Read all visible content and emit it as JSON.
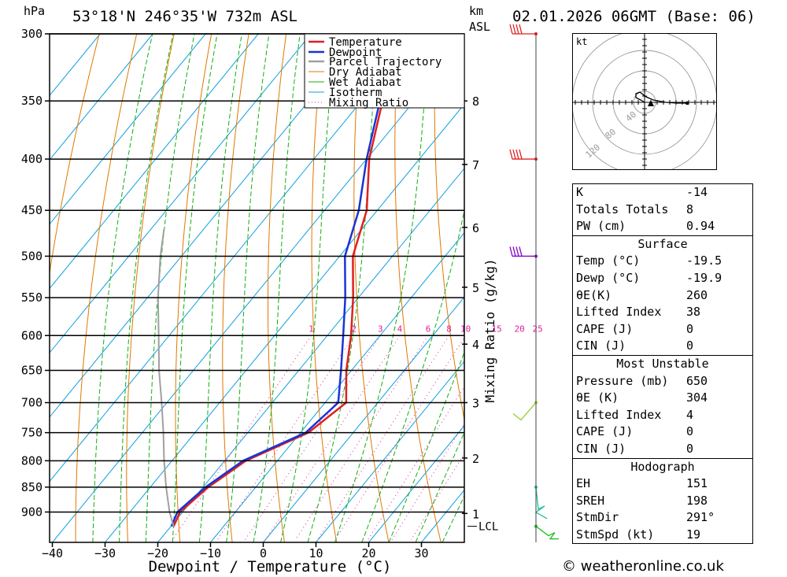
{
  "header": {
    "location": "53°18'N 246°35'W 732m ASL",
    "date": "02.01.2026 06GMT (Base: 06)",
    "hpa_label": "hPa",
    "km_label": "km",
    "asl_label": "ASL"
  },
  "chart_data": {
    "type": "line",
    "title": "Skew-T log-P diagram",
    "xlabel": "Dewpoint / Temperature (°C)",
    "ylabel": "hPa",
    "right_axis_label": "Mixing Ratio (g/kg)",
    "x_ticks": [
      -40,
      -30,
      -20,
      -10,
      0,
      10,
      20,
      30
    ],
    "pressure_levels": [
      300,
      350,
      400,
      450,
      500,
      550,
      600,
      650,
      700,
      750,
      800,
      850,
      900
    ],
    "km_ticks": [
      {
        "label": "8",
        "p": 350
      },
      {
        "label": "7",
        "p": 405
      },
      {
        "label": "6",
        "p": 468
      },
      {
        "label": "5",
        "p": 537
      },
      {
        "label": "4",
        "p": 612
      },
      {
        "label": "3",
        "p": 700
      },
      {
        "label": "2",
        "p": 795
      },
      {
        "label": "1",
        "p": 903
      }
    ],
    "lcl_label": "LCL",
    "lcl_p": 930,
    "mixing_ratio_labels": [
      "1",
      "2",
      "3",
      "4",
      "6",
      "8",
      "10",
      "15",
      "20",
      "25"
    ],
    "legend": [
      "Temperature",
      "Dewpoint",
      "Parcel Trajectory",
      "Dry Adiabat",
      "Wet Adiabat",
      "Isotherm",
      "Mixing Ratio"
    ],
    "series": [
      {
        "name": "Temperature",
        "points": [
          [
            300,
            -52
          ],
          [
            350,
            -46
          ],
          [
            400,
            -39.5
          ],
          [
            450,
            -32
          ],
          [
            500,
            -27.5
          ],
          [
            550,
            -21
          ],
          [
            600,
            -15.5
          ],
          [
            650,
            -11
          ],
          [
            700,
            -6
          ],
          [
            750,
            -8.5
          ],
          [
            800,
            -16
          ],
          [
            850,
            -19
          ],
          [
            900,
            -20.5
          ],
          [
            930,
            -19.5
          ]
        ]
      },
      {
        "name": "Dewpoint",
        "points": [
          [
            300,
            -53
          ],
          [
            350,
            -46.5
          ],
          [
            400,
            -40
          ],
          [
            450,
            -33.5
          ],
          [
            500,
            -29
          ],
          [
            550,
            -22.5
          ],
          [
            600,
            -17
          ],
          [
            650,
            -12
          ],
          [
            700,
            -7.5
          ],
          [
            750,
            -9
          ],
          [
            800,
            -16.5
          ],
          [
            850,
            -19.5
          ],
          [
            900,
            -21
          ],
          [
            930,
            -19.9
          ]
        ]
      },
      {
        "name": "Parcel Trajectory",
        "points": [
          [
            930,
            -19.5
          ],
          [
            900,
            -22.5
          ],
          [
            850,
            -27
          ],
          [
            800,
            -31.5
          ],
          [
            750,
            -36
          ],
          [
            700,
            -41
          ],
          [
            650,
            -46.5
          ],
          [
            600,
            -52
          ],
          [
            550,
            -58
          ],
          [
            500,
            -64
          ],
          [
            470,
            -67.5
          ]
        ]
      }
    ],
    "wind_barbs": [
      {
        "p": 300,
        "color": "#e02020"
      },
      {
        "p": 400,
        "color": "#e02020"
      },
      {
        "p": 500,
        "color": "#8a00c8"
      },
      {
        "p": 700,
        "color": "#9acd32"
      },
      {
        "p": 850,
        "color": "#20c0a0"
      },
      {
        "p": 930,
        "color": "#20c020"
      }
    ]
  },
  "hodograph": {
    "unit": "kt",
    "ring_labels": [
      "40",
      "80",
      "120"
    ]
  },
  "indices": {
    "top": [
      {
        "label": "K",
        "value": "-14"
      },
      {
        "label": "Totals Totals",
        "value": "8"
      },
      {
        "label": "PW (cm)",
        "value": "0.94"
      }
    ],
    "surface_title": "Surface",
    "surface": [
      {
        "label": "Temp (°C)",
        "value": "-19.5"
      },
      {
        "label": "Dewp (°C)",
        "value": "-19.9"
      },
      {
        "label": "θE(K)",
        "value": "260"
      },
      {
        "label": "Lifted Index",
        "value": "38"
      },
      {
        "label": "CAPE (J)",
        "value": "0"
      },
      {
        "label": "CIN (J)",
        "value": "0"
      }
    ],
    "mu_title": "Most Unstable",
    "mu": [
      {
        "label": "Pressure (mb)",
        "value": "650"
      },
      {
        "label": "θE (K)",
        "value": "304"
      },
      {
        "label": "Lifted Index",
        "value": "4"
      },
      {
        "label": "CAPE (J)",
        "value": "0"
      },
      {
        "label": "CIN (J)",
        "value": "0"
      }
    ],
    "hodo_title": "Hodograph",
    "hodo": [
      {
        "label": "EH",
        "value": "151"
      },
      {
        "label": "SREH",
        "value": "198"
      },
      {
        "label": "StmDir",
        "value": "291°"
      },
      {
        "label": "StmSpd (kt)",
        "value": "19"
      }
    ]
  },
  "footer": "© weatheronline.co.uk",
  "colors": {
    "temperature": "#e02020",
    "dewpoint": "#1a33d6",
    "parcel": "#a0a0a0",
    "dry_adiabat": "#e07800",
    "wet_adiabat": "#10b010",
    "isotherm": "#10a0e0",
    "mixing_ratio": "#e0209a"
  }
}
